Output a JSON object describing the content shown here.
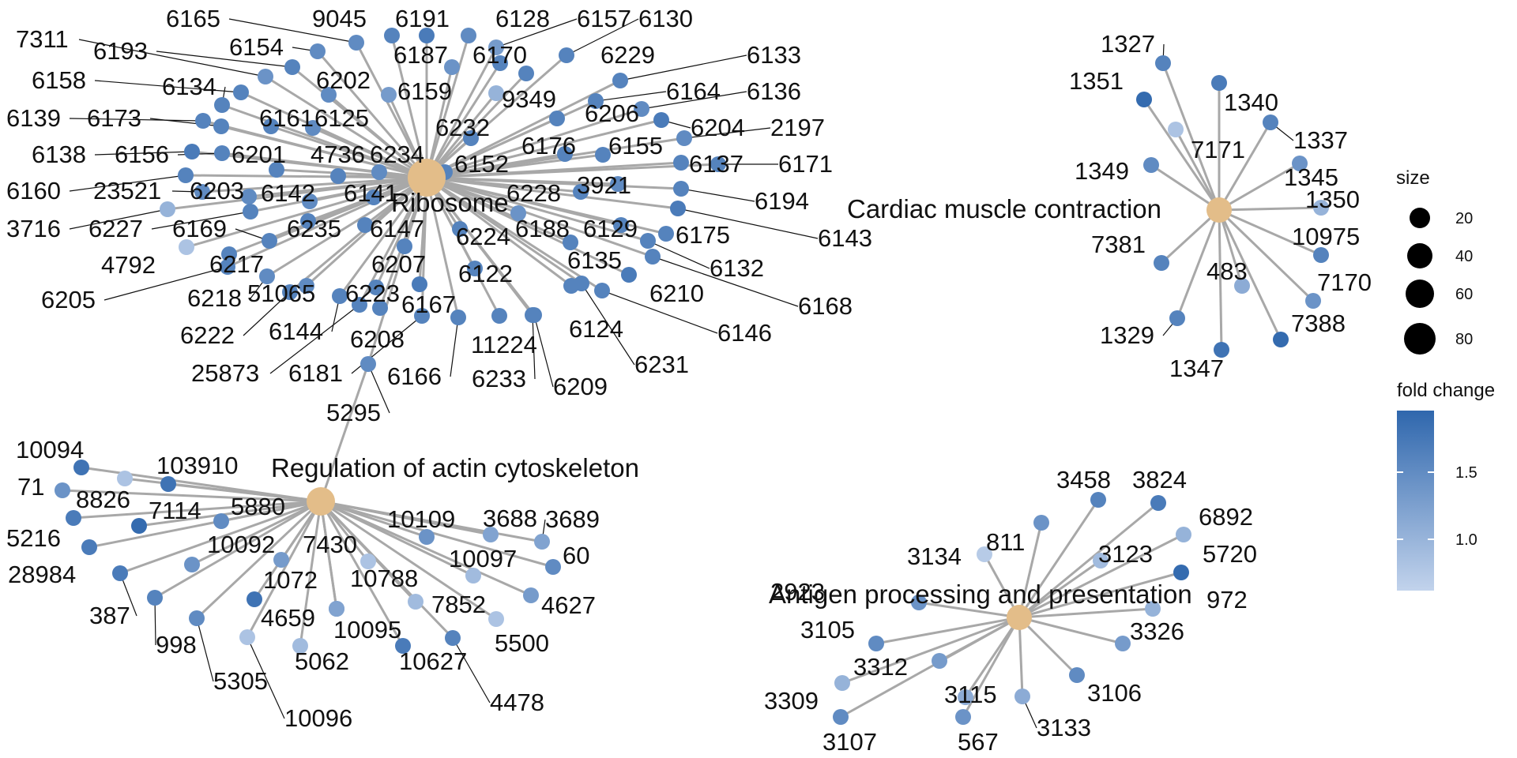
{
  "colors": {
    "hub": "#e3bd89",
    "edge": "#a8a8a8",
    "fc_low": "#c2d3ec",
    "fc_high": "#2f67ad"
  },
  "legend": {
    "size_title": "size",
    "size_values": [
      "20",
      "40",
      "60",
      "80"
    ],
    "color_title": "fold change",
    "color_ticks": [
      "1.5",
      "1.0"
    ]
  },
  "clusters": [
    {
      "id": "ribosome",
      "hub": "Ribosome",
      "genes": [
        {
          "id": "6165",
          "fc": 1.5
        },
        {
          "id": "9045",
          "fc": 1.6
        },
        {
          "id": "6191",
          "fc": 1.7
        },
        {
          "id": "6128",
          "fc": 1.5
        },
        {
          "id": "6157",
          "fc": 1.3
        },
        {
          "id": "6130",
          "fc": 1.6
        },
        {
          "id": "7311",
          "fc": 1.4
        },
        {
          "id": "6193",
          "fc": 1.6
        },
        {
          "id": "6154",
          "fc": 1.5
        },
        {
          "id": "6187",
          "fc": 1.4
        },
        {
          "id": "6170",
          "fc": 1.6
        },
        {
          "id": "6229",
          "fc": 1.6
        },
        {
          "id": "6133",
          "fc": 1.6
        },
        {
          "id": "6158",
          "fc": 1.6
        },
        {
          "id": "6202",
          "fc": 1.5
        },
        {
          "id": "6159",
          "fc": 1.3
        },
        {
          "id": "9349",
          "fc": 1.0
        },
        {
          "id": "6134",
          "fc": 1.6
        },
        {
          "id": "6164",
          "fc": 1.6
        },
        {
          "id": "6136",
          "fc": 1.5
        },
        {
          "id": "6139",
          "fc": 1.6
        },
        {
          "id": "6173",
          "fc": 1.6
        },
        {
          "id": "6161",
          "fc": 1.6
        },
        {
          "id": "6125",
          "fc": 1.5
        },
        {
          "id": "6232",
          "fc": 1.6
        },
        {
          "id": "6206",
          "fc": 1.6
        },
        {
          "id": "6204",
          "fc": 1.7
        },
        {
          "id": "2197",
          "fc": 1.5
        },
        {
          "id": "6138",
          "fc": 1.7
        },
        {
          "id": "6156",
          "fc": 1.6
        },
        {
          "id": "6201",
          "fc": 1.6
        },
        {
          "id": "4736",
          "fc": 1.6
        },
        {
          "id": "6234",
          "fc": 1.5
        },
        {
          "id": "6152",
          "fc": 1.6
        },
        {
          "id": "6176",
          "fc": 1.6
        },
        {
          "id": "6155",
          "fc": 1.6
        },
        {
          "id": "6137",
          "fc": 1.6
        },
        {
          "id": "6171",
          "fc": 1.6
        },
        {
          "id": "6160",
          "fc": 1.6
        },
        {
          "id": "23521",
          "fc": 1.5
        },
        {
          "id": "6203",
          "fc": 1.5
        },
        {
          "id": "6142",
          "fc": 1.5
        },
        {
          "id": "6141",
          "fc": 1.6
        },
        {
          "id": "6228",
          "fc": 1.6
        },
        {
          "id": "3921",
          "fc": 1.5
        },
        {
          "id": "6194",
          "fc": 1.6
        },
        {
          "id": "3716",
          "fc": 1.0
        },
        {
          "id": "6227",
          "fc": 1.6
        },
        {
          "id": "6169",
          "fc": 1.6
        },
        {
          "id": "6235",
          "fc": 1.6
        },
        {
          "id": "6147",
          "fc": 1.6
        },
        {
          "id": "6224",
          "fc": 1.6
        },
        {
          "id": "6188",
          "fc": 1.4
        },
        {
          "id": "6129",
          "fc": 1.6
        },
        {
          "id": "6175",
          "fc": 1.6
        },
        {
          "id": "6143",
          "fc": 1.7
        },
        {
          "id": "4792",
          "fc": 0.8
        },
        {
          "id": "6217",
          "fc": 1.6
        },
        {
          "id": "6207",
          "fc": 1.6
        },
        {
          "id": "6135",
          "fc": 1.6
        },
        {
          "id": "6132",
          "fc": 1.6
        },
        {
          "id": "6205",
          "fc": 1.6
        },
        {
          "id": "6218",
          "fc": 1.5
        },
        {
          "id": "51065",
          "fc": 1.5
        },
        {
          "id": "6223",
          "fc": 1.6
        },
        {
          "id": "6122",
          "fc": 1.6
        },
        {
          "id": "6210",
          "fc": 1.7
        },
        {
          "id": "6168",
          "fc": 1.6
        },
        {
          "id": "6222",
          "fc": 1.6
        },
        {
          "id": "6144",
          "fc": 1.6
        },
        {
          "id": "6167",
          "fc": 1.7
        },
        {
          "id": "6124",
          "fc": 1.6
        },
        {
          "id": "6146",
          "fc": 1.6
        },
        {
          "id": "6208",
          "fc": 1.6
        },
        {
          "id": "11224",
          "fc": 1.6
        },
        {
          "id": "25873",
          "fc": 1.6
        },
        {
          "id": "6181",
          "fc": 1.6
        },
        {
          "id": "6166",
          "fc": 1.6
        },
        {
          "id": "6233",
          "fc": 1.6
        },
        {
          "id": "6231",
          "fc": 1.6
        },
        {
          "id": "6209",
          "fc": 1.6
        },
        {
          "id": "5295",
          "fc": 1.5
        }
      ]
    },
    {
      "id": "cardiac",
      "hub": "Cardiac muscle contraction",
      "genes": [
        {
          "id": "1327",
          "fc": 1.6
        },
        {
          "id": "1351",
          "fc": 1.9
        },
        {
          "id": "1340",
          "fc": 1.7
        },
        {
          "id": "1337",
          "fc": 1.6
        },
        {
          "id": "7171",
          "fc": 0.8
        },
        {
          "id": "1349",
          "fc": 1.5
        },
        {
          "id": "1345",
          "fc": 1.4
        },
        {
          "id": "1350",
          "fc": 1.0
        },
        {
          "id": "10975",
          "fc": 1.6
        },
        {
          "id": "7381",
          "fc": 1.6
        },
        {
          "id": "483",
          "fc": 1.1
        },
        {
          "id": "7170",
          "fc": 1.4
        },
        {
          "id": "1329",
          "fc": 1.6
        },
        {
          "id": "7388",
          "fc": 1.9
        },
        {
          "id": "1347",
          "fc": 1.8
        }
      ]
    },
    {
      "id": "actin",
      "hub": "Regulation of actin cytoskeleton",
      "genes": [
        {
          "id": "10094",
          "fc": 1.8
        },
        {
          "id": "103910",
          "fc": 0.8
        },
        {
          "id": "71",
          "fc": 1.4
        },
        {
          "id": "8826",
          "fc": 1.8
        },
        {
          "id": "7114",
          "fc": 1.9
        },
        {
          "id": "5880",
          "fc": 1.5
        },
        {
          "id": "10109",
          "fc": 1.4
        },
        {
          "id": "3688",
          "fc": 1.2
        },
        {
          "id": "3689",
          "fc": 1.2
        },
        {
          "id": "5216",
          "fc": 1.7
        },
        {
          "id": "10092",
          "fc": 1.4
        },
        {
          "id": "7430",
          "fc": 1.3
        },
        {
          "id": "10097",
          "fc": 0.9
        },
        {
          "id": "60",
          "fc": 1.5
        },
        {
          "id": "28984",
          "fc": 1.7
        },
        {
          "id": "1072",
          "fc": 1.8
        },
        {
          "id": "10788",
          "fc": 0.8
        },
        {
          "id": "387",
          "fc": 1.7
        },
        {
          "id": "998",
          "fc": 1.6
        },
        {
          "id": "4659",
          "fc": 1.5
        },
        {
          "id": "7852",
          "fc": 0.9
        },
        {
          "id": "4627",
          "fc": 1.3
        },
        {
          "id": "10095",
          "fc": 1.2
        },
        {
          "id": "5500",
          "fc": 0.8
        },
        {
          "id": "5305",
          "fc": 1.5
        },
        {
          "id": "5062",
          "fc": 0.9
        },
        {
          "id": "10627",
          "fc": 1.7
        },
        {
          "id": "10096",
          "fc": 0.8
        },
        {
          "id": "4478",
          "fc": 1.6
        }
      ]
    },
    {
      "id": "antigen",
      "hub": "Antigen processing and presentation",
      "genes": [
        {
          "id": "3458",
          "fc": 1.6
        },
        {
          "id": "3824",
          "fc": 1.7
        },
        {
          "id": "6892",
          "fc": 1.0
        },
        {
          "id": "811",
          "fc": 1.4
        },
        {
          "id": "3134",
          "fc": 0.7
        },
        {
          "id": "3123",
          "fc": 0.9
        },
        {
          "id": "5720",
          "fc": 1.9
        },
        {
          "id": "2923",
          "fc": 1.4
        },
        {
          "id": "972",
          "fc": 1.0
        },
        {
          "id": "3105",
          "fc": 1.5
        },
        {
          "id": "3326",
          "fc": 1.3
        },
        {
          "id": "3312",
          "fc": 1.3
        },
        {
          "id": "3309",
          "fc": 1.0
        },
        {
          "id": "3115",
          "fc": 1.1
        },
        {
          "id": "3106",
          "fc": 1.5
        },
        {
          "id": "3133",
          "fc": 1.1
        },
        {
          "id": "3107",
          "fc": 1.5
        },
        {
          "id": "567",
          "fc": 1.4
        }
      ]
    }
  ]
}
